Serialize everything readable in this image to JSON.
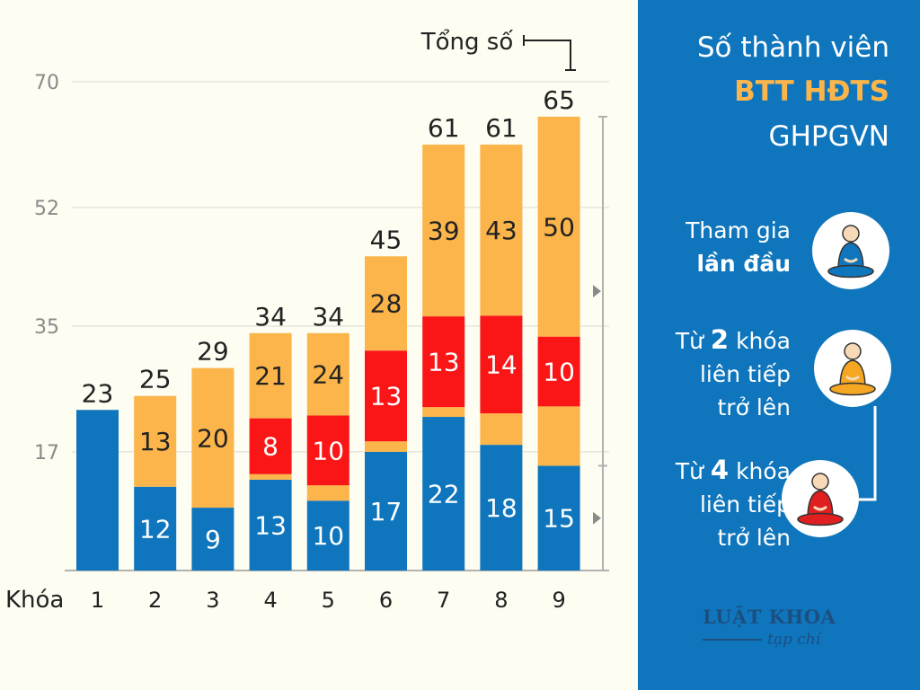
{
  "chart_data": {
    "type": "bar",
    "stacked": true,
    "xlabel": "Khóa",
    "categories": [
      "1",
      "2",
      "3",
      "4",
      "5",
      "6",
      "7",
      "8",
      "9"
    ],
    "series": [
      {
        "key": "s1",
        "values": [
          23,
          12,
          9,
          13,
          10,
          17,
          22,
          18,
          15
        ],
        "color": "#0f76bd",
        "labels": [
          "",
          "12",
          "9",
          "13",
          "10",
          "17",
          "22",
          "18",
          "15"
        ]
      },
      {
        "key": "s2",
        "values": [
          0,
          13,
          20,
          0.8,
          2.2,
          1.5,
          1.4,
          4.5,
          8.5
        ],
        "color": "#fbb54a",
        "labels": [
          "",
          "13",
          "20",
          "",
          "",
          "",
          "",
          "",
          ""
        ]
      },
      {
        "key": "s3",
        "values": [
          0,
          0,
          0,
          8,
          10,
          13,
          13,
          14,
          10
        ],
        "color": "#fa1616",
        "labels": [
          "",
          "",
          "",
          "8",
          "10",
          "13",
          "13",
          "14",
          "10"
        ]
      },
      {
        "key": "s4",
        "values": [
          0,
          0,
          0,
          12.2,
          11.8,
          13.5,
          24.6,
          24.5,
          31.5
        ],
        "color": "#fbb54a",
        "labels": [
          "",
          "",
          "",
          "21",
          "24",
          "28",
          "39",
          "43",
          "50"
        ]
      }
    ],
    "totals": [
      "23",
      "25",
      "29",
      "34",
      "34",
      "45",
      "61",
      "61",
      "65"
    ],
    "yticks": [
      "17",
      "35",
      "52",
      "70"
    ],
    "ylim": [
      0,
      70
    ],
    "total_label": "Tổng số",
    "grid": true
  },
  "panel": {
    "title_line1": "Số thành viên",
    "title_line2": "BTT HĐTS",
    "title_line3": "GHPGVN",
    "accent_color": "#fbb54a",
    "background_color": "#0f76bd",
    "legend": [
      {
        "pre": "Tham gia",
        "bold": "lần đầu",
        "icon": "monk-blue-robe-icon",
        "robe_color": "#0f76bd"
      },
      {
        "pre": "Từ",
        "num": "2",
        "post": "khóa",
        "line2": "liên tiếp",
        "line3": "trở lên",
        "icon": "monk-orange-robe-icon",
        "robe_color": "#f5a623"
      },
      {
        "pre": "Từ",
        "num": "4",
        "post": "khóa",
        "line2": "liên tiếp",
        "line3": "trở lên",
        "icon": "monk-red-robe-icon",
        "robe_color": "#e02020"
      }
    ]
  },
  "logo": {
    "main": "LUẬT KHOA",
    "sub": "tạp chí"
  }
}
